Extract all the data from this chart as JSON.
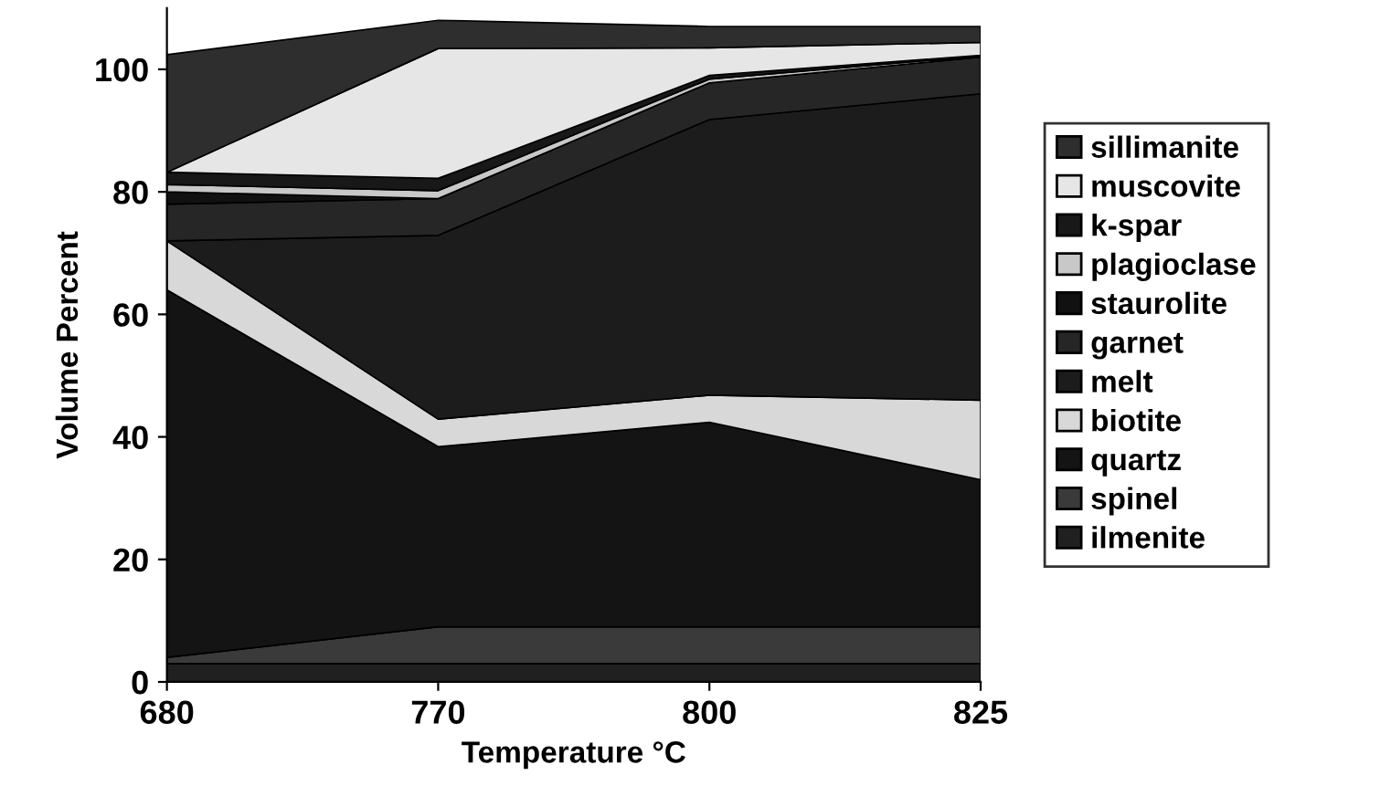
{
  "chart_data": {
    "type": "area",
    "stacked": true,
    "xlabel": "Temperature °C",
    "ylabel": "Volume Percent",
    "categories": [
      "680",
      "770",
      "800",
      "825"
    ],
    "ylim": [
      0,
      110
    ],
    "yticks": [
      0,
      20,
      40,
      60,
      80,
      100
    ],
    "grid": false,
    "legend": "right",
    "series": [
      {
        "name": "ilmenite",
        "color": "#202020",
        "values": [
          3,
          3,
          3,
          3
        ]
      },
      {
        "name": "spinel",
        "color": "#3a3a3a",
        "values": [
          1,
          6,
          6,
          6
        ]
      },
      {
        "name": "quartz",
        "color": "#141414",
        "values": [
          60,
          29.4,
          33.4,
          24
        ]
      },
      {
        "name": "biotite",
        "color": "#d8d8d8",
        "values": [
          8,
          4.5,
          4.4,
          13
        ]
      },
      {
        "name": "melt",
        "color": "#1c1c1c",
        "values": [
          0,
          30,
          45,
          50
        ]
      },
      {
        "name": "garnet",
        "color": "#262626",
        "values": [
          6,
          6,
          6,
          6
        ]
      },
      {
        "name": "staurolite",
        "color": "#111111",
        "values": [
          2,
          0,
          0,
          0
        ]
      },
      {
        "name": "plagioclase",
        "color": "#c8c8c8",
        "values": [
          1.2,
          1.3,
          0.6,
          0.2
        ]
      },
      {
        "name": "k-spar",
        "color": "#181818",
        "values": [
          2,
          2,
          0.6,
          0.1
        ]
      },
      {
        "name": "muscovite",
        "color": "#e6e6e6",
        "values": [
          0,
          21.2,
          4.5,
          2.1
        ]
      },
      {
        "name": "sillimanite",
        "color": "#2e2e2e",
        "values": [
          19.2,
          4.6,
          3.5,
          2.6
        ]
      }
    ]
  }
}
